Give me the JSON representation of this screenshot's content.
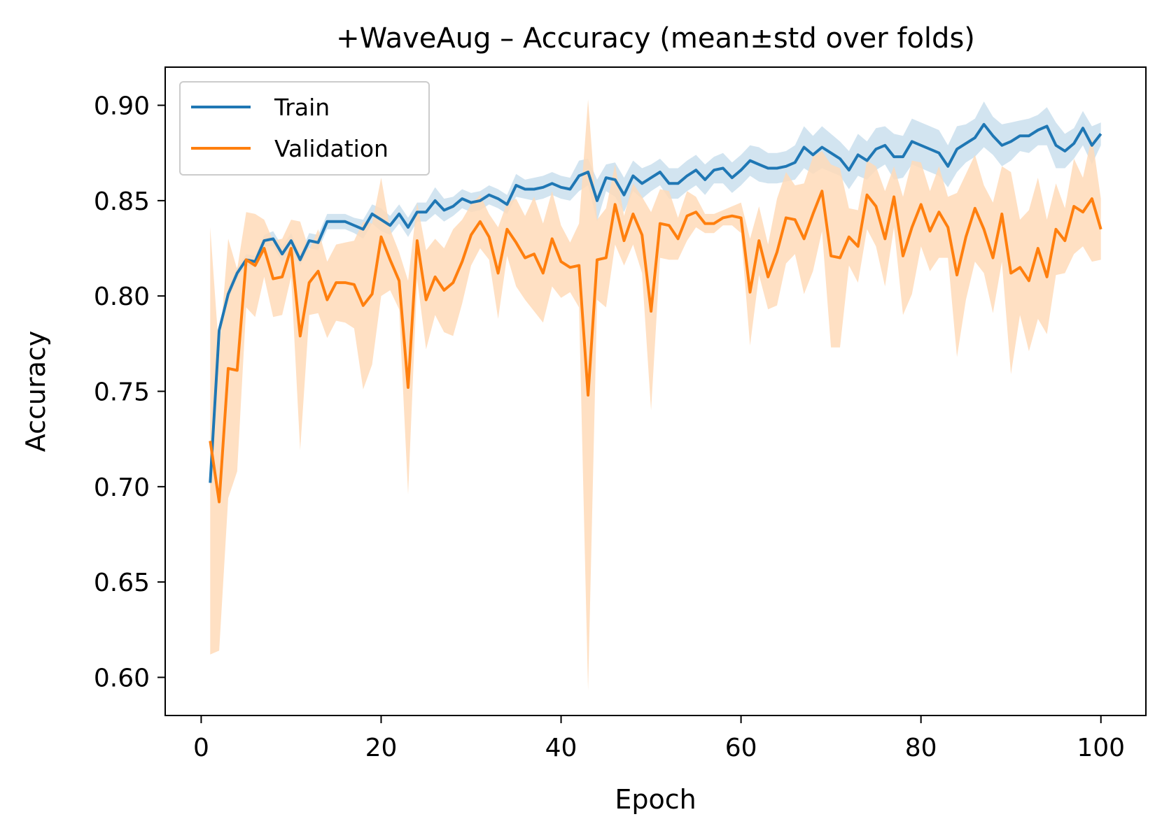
{
  "chart_data": {
    "type": "line",
    "title": "+WaveAug – Accuracy (mean±std over folds)",
    "xlabel": "Epoch",
    "ylabel": "Accuracy",
    "xlim": [
      -4,
      105
    ],
    "ylim": [
      0.58,
      0.92
    ],
    "xticks": [
      0,
      20,
      40,
      60,
      80,
      100
    ],
    "yticks": [
      0.6,
      0.65,
      0.7,
      0.75,
      0.8,
      0.85,
      0.9
    ],
    "xtick_labels": [
      "0",
      "20",
      "40",
      "60",
      "80",
      "100"
    ],
    "ytick_labels": [
      "0.60",
      "0.65",
      "0.70",
      "0.75",
      "0.80",
      "0.85",
      "0.90"
    ],
    "legend_position": "top-left",
    "grid": false,
    "x": [
      1,
      2,
      3,
      4,
      5,
      6,
      7,
      8,
      9,
      10,
      11,
      12,
      13,
      14,
      15,
      16,
      17,
      18,
      19,
      20,
      21,
      22,
      23,
      24,
      25,
      26,
      27,
      28,
      29,
      30,
      31,
      32,
      33,
      34,
      35,
      36,
      37,
      38,
      39,
      40,
      41,
      42,
      43,
      44,
      45,
      46,
      47,
      48,
      49,
      50,
      51,
      52,
      53,
      54,
      55,
      56,
      57,
      58,
      59,
      60,
      61,
      62,
      63,
      64,
      65,
      66,
      67,
      68,
      69,
      70,
      71,
      72,
      73,
      74,
      75,
      76,
      77,
      78,
      79,
      80,
      81,
      82,
      83,
      84,
      85,
      86,
      87,
      88,
      89,
      90,
      91,
      92,
      93,
      94,
      95,
      96,
      97,
      98,
      99,
      100
    ],
    "series": [
      {
        "name": "Train",
        "color": "#1f77b4",
        "band_color": "#1f77b4",
        "mean": [
          0.702,
          0.782,
          0.801,
          0.812,
          0.819,
          0.818,
          0.829,
          0.83,
          0.822,
          0.829,
          0.819,
          0.829,
          0.828,
          0.839,
          0.839,
          0.839,
          0.837,
          0.835,
          0.843,
          0.84,
          0.837,
          0.843,
          0.836,
          0.844,
          0.844,
          0.85,
          0.845,
          0.847,
          0.851,
          0.849,
          0.85,
          0.853,
          0.851,
          0.848,
          0.858,
          0.856,
          0.856,
          0.857,
          0.859,
          0.857,
          0.856,
          0.863,
          0.865,
          0.85,
          0.862,
          0.861,
          0.853,
          0.863,
          0.859,
          0.862,
          0.865,
          0.859,
          0.859,
          0.863,
          0.866,
          0.861,
          0.866,
          0.867,
          0.862,
          0.866,
          0.871,
          0.869,
          0.867,
          0.867,
          0.868,
          0.87,
          0.878,
          0.874,
          0.878,
          0.875,
          0.872,
          0.866,
          0.874,
          0.871,
          0.877,
          0.879,
          0.873,
          0.873,
          0.881,
          0.879,
          0.877,
          0.875,
          0.868,
          0.877,
          0.88,
          0.883,
          0.89,
          0.884,
          0.879,
          0.881,
          0.884,
          0.884,
          0.887,
          0.889,
          0.879,
          0.876,
          0.88,
          0.888,
          0.879,
          0.885
        ],
        "std": [
          0.001,
          0.002,
          0.003,
          0.003,
          0.003,
          0.003,
          0.003,
          0.004,
          0.004,
          0.004,
          0.003,
          0.004,
          0.004,
          0.004,
          0.004,
          0.004,
          0.004,
          0.005,
          0.005,
          0.006,
          0.005,
          0.005,
          0.005,
          0.005,
          0.005,
          0.007,
          0.006,
          0.005,
          0.005,
          0.005,
          0.005,
          0.005,
          0.005,
          0.005,
          0.006,
          0.005,
          0.006,
          0.006,
          0.006,
          0.006,
          0.006,
          0.008,
          0.007,
          0.011,
          0.007,
          0.009,
          0.009,
          0.008,
          0.008,
          0.007,
          0.007,
          0.008,
          0.008,
          0.008,
          0.008,
          0.008,
          0.007,
          0.008,
          0.008,
          0.008,
          0.008,
          0.009,
          0.008,
          0.008,
          0.008,
          0.009,
          0.011,
          0.01,
          0.011,
          0.01,
          0.009,
          0.01,
          0.011,
          0.01,
          0.011,
          0.01,
          0.012,
          0.011,
          0.012,
          0.012,
          0.012,
          0.012,
          0.011,
          0.012,
          0.01,
          0.01,
          0.012,
          0.01,
          0.011,
          0.01,
          0.008,
          0.009,
          0.008,
          0.01,
          0.012,
          0.009,
          0.008,
          0.009,
          0.01,
          0.006
        ]
      },
      {
        "name": "Validation",
        "color": "#ff7f0e",
        "band_color": "#ffdab8",
        "mean": [
          0.724,
          0.692,
          0.762,
          0.761,
          0.819,
          0.816,
          0.825,
          0.809,
          0.81,
          0.825,
          0.779,
          0.807,
          0.813,
          0.798,
          0.807,
          0.807,
          0.806,
          0.795,
          0.801,
          0.831,
          0.819,
          0.808,
          0.752,
          0.829,
          0.798,
          0.81,
          0.803,
          0.807,
          0.818,
          0.832,
          0.839,
          0.831,
          0.812,
          0.835,
          0.828,
          0.82,
          0.822,
          0.812,
          0.83,
          0.818,
          0.815,
          0.816,
          0.748,
          0.819,
          0.82,
          0.848,
          0.829,
          0.843,
          0.832,
          0.792,
          0.838,
          0.837,
          0.83,
          0.842,
          0.844,
          0.838,
          0.838,
          0.841,
          0.842,
          0.841,
          0.802,
          0.829,
          0.81,
          0.823,
          0.841,
          0.84,
          0.83,
          0.843,
          0.855,
          0.821,
          0.82,
          0.831,
          0.826,
          0.853,
          0.847,
          0.83,
          0.852,
          0.821,
          0.836,
          0.848,
          0.834,
          0.844,
          0.836,
          0.811,
          0.831,
          0.846,
          0.835,
          0.82,
          0.843,
          0.812,
          0.815,
          0.808,
          0.825,
          0.81,
          0.835,
          0.829,
          0.847,
          0.844,
          0.851,
          0.835
        ],
        "std": [
          0.112,
          0.078,
          0.068,
          0.053,
          0.025,
          0.027,
          0.015,
          0.02,
          0.02,
          0.015,
          0.06,
          0.017,
          0.022,
          0.02,
          0.02,
          0.021,
          0.023,
          0.044,
          0.037,
          0.031,
          0.016,
          0.015,
          0.056,
          0.02,
          0.026,
          0.02,
          0.022,
          0.028,
          0.022,
          0.016,
          0.014,
          0.012,
          0.024,
          0.014,
          0.023,
          0.022,
          0.03,
          0.026,
          0.025,
          0.019,
          0.013,
          0.022,
          0.155,
          0.021,
          0.026,
          0.021,
          0.013,
          0.016,
          0.02,
          0.052,
          0.018,
          0.018,
          0.011,
          0.013,
          0.008,
          0.005,
          0.005,
          0.004,
          0.005,
          0.008,
          0.028,
          0.018,
          0.017,
          0.028,
          0.024,
          0.018,
          0.029,
          0.03,
          0.021,
          0.048,
          0.047,
          0.015,
          0.019,
          0.018,
          0.021,
          0.025,
          0.016,
          0.031,
          0.035,
          0.022,
          0.021,
          0.024,
          0.016,
          0.043,
          0.033,
          0.028,
          0.023,
          0.029,
          0.025,
          0.053,
          0.025,
          0.037,
          0.037,
          0.03,
          0.024,
          0.017,
          0.025,
          0.018,
          0.033,
          0.016
        ]
      }
    ]
  }
}
